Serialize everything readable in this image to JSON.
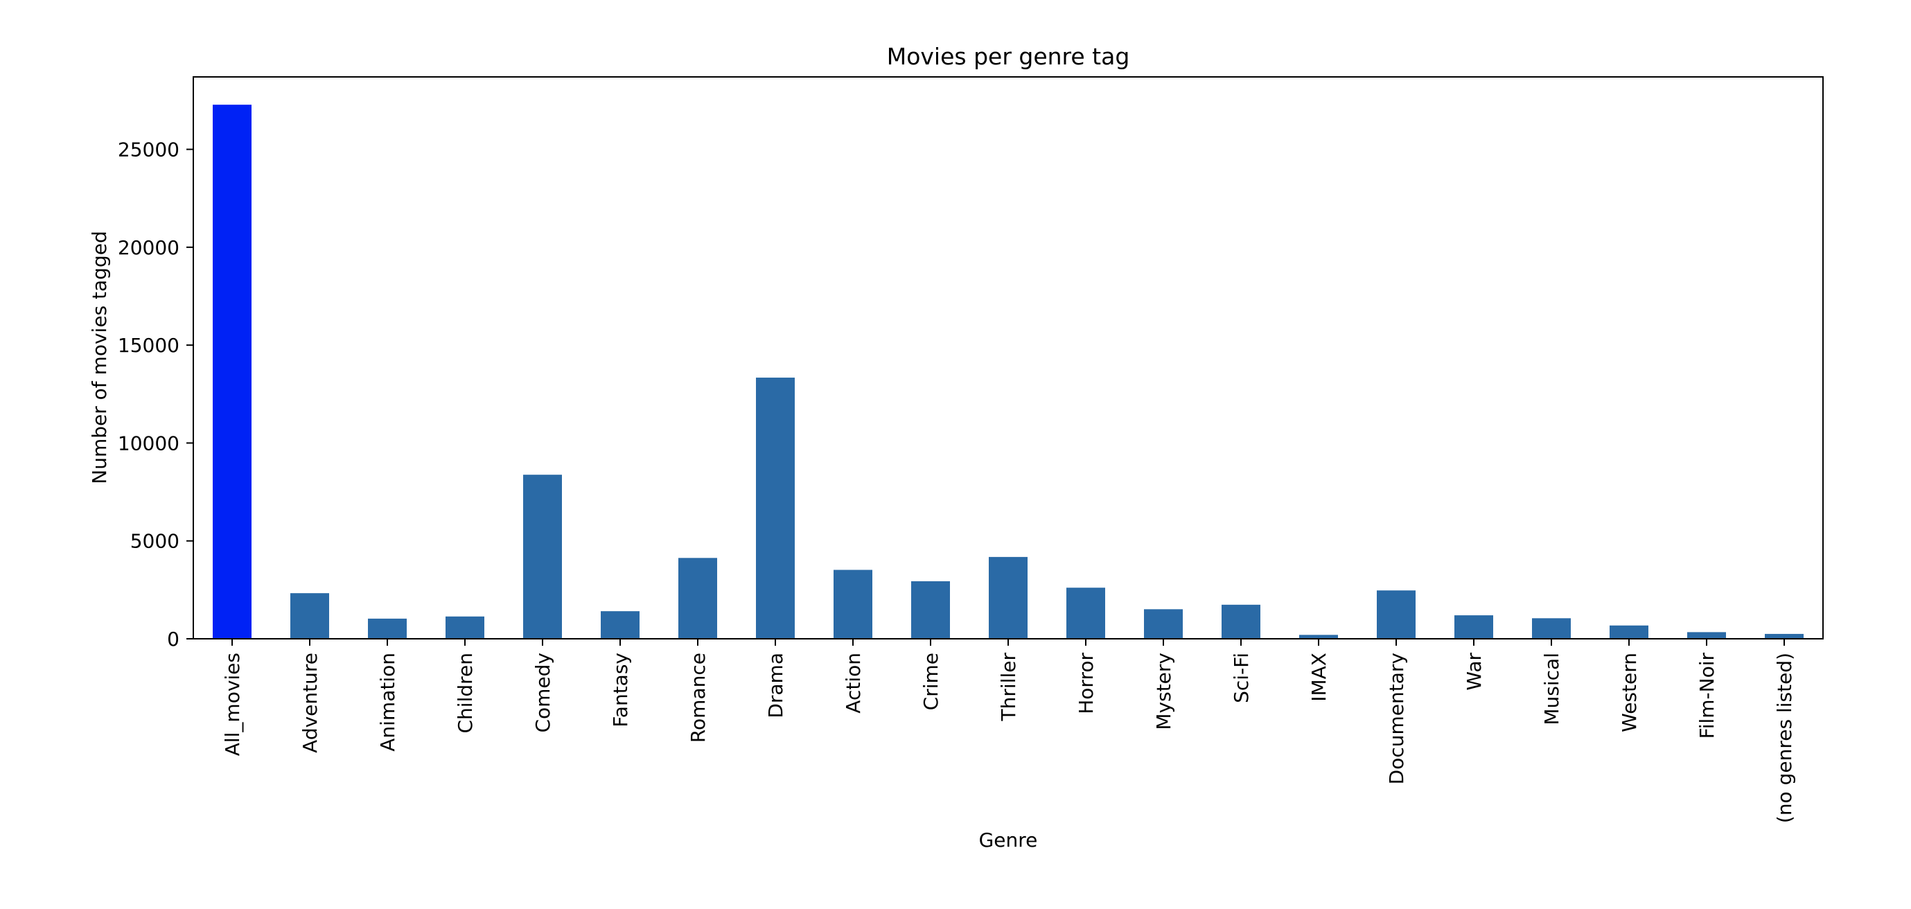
{
  "chart_data": {
    "type": "bar",
    "title": "Movies per genre tag",
    "xlabel": "Genre",
    "ylabel": "Number of movies tagged",
    "ylim": [
      0,
      28700
    ],
    "yticks": [
      0,
      5000,
      10000,
      15000,
      20000,
      25000
    ],
    "grid": false,
    "legend": "none",
    "categories": [
      "All_movies",
      "Adventure",
      "Animation",
      "Children",
      "Comedy",
      "Fantasy",
      "Romance",
      "Drama",
      "Action",
      "Crime",
      "Thriller",
      "Horror",
      "Mystery",
      "Sci-Fi",
      "IMAX",
      "Documentary",
      "War",
      "Musical",
      "Western",
      "Film-Noir",
      "(no genres listed)"
    ],
    "values": [
      27280,
      2330,
      1030,
      1140,
      8380,
      1410,
      4130,
      13340,
      3520,
      2940,
      4180,
      2610,
      1510,
      1740,
      200,
      2470,
      1200,
      1050,
      680,
      340,
      250
    ],
    "colors": {
      "default": "#2a6aa6",
      "highlight": "#0022f5",
      "highlight_category": "All_movies"
    }
  }
}
